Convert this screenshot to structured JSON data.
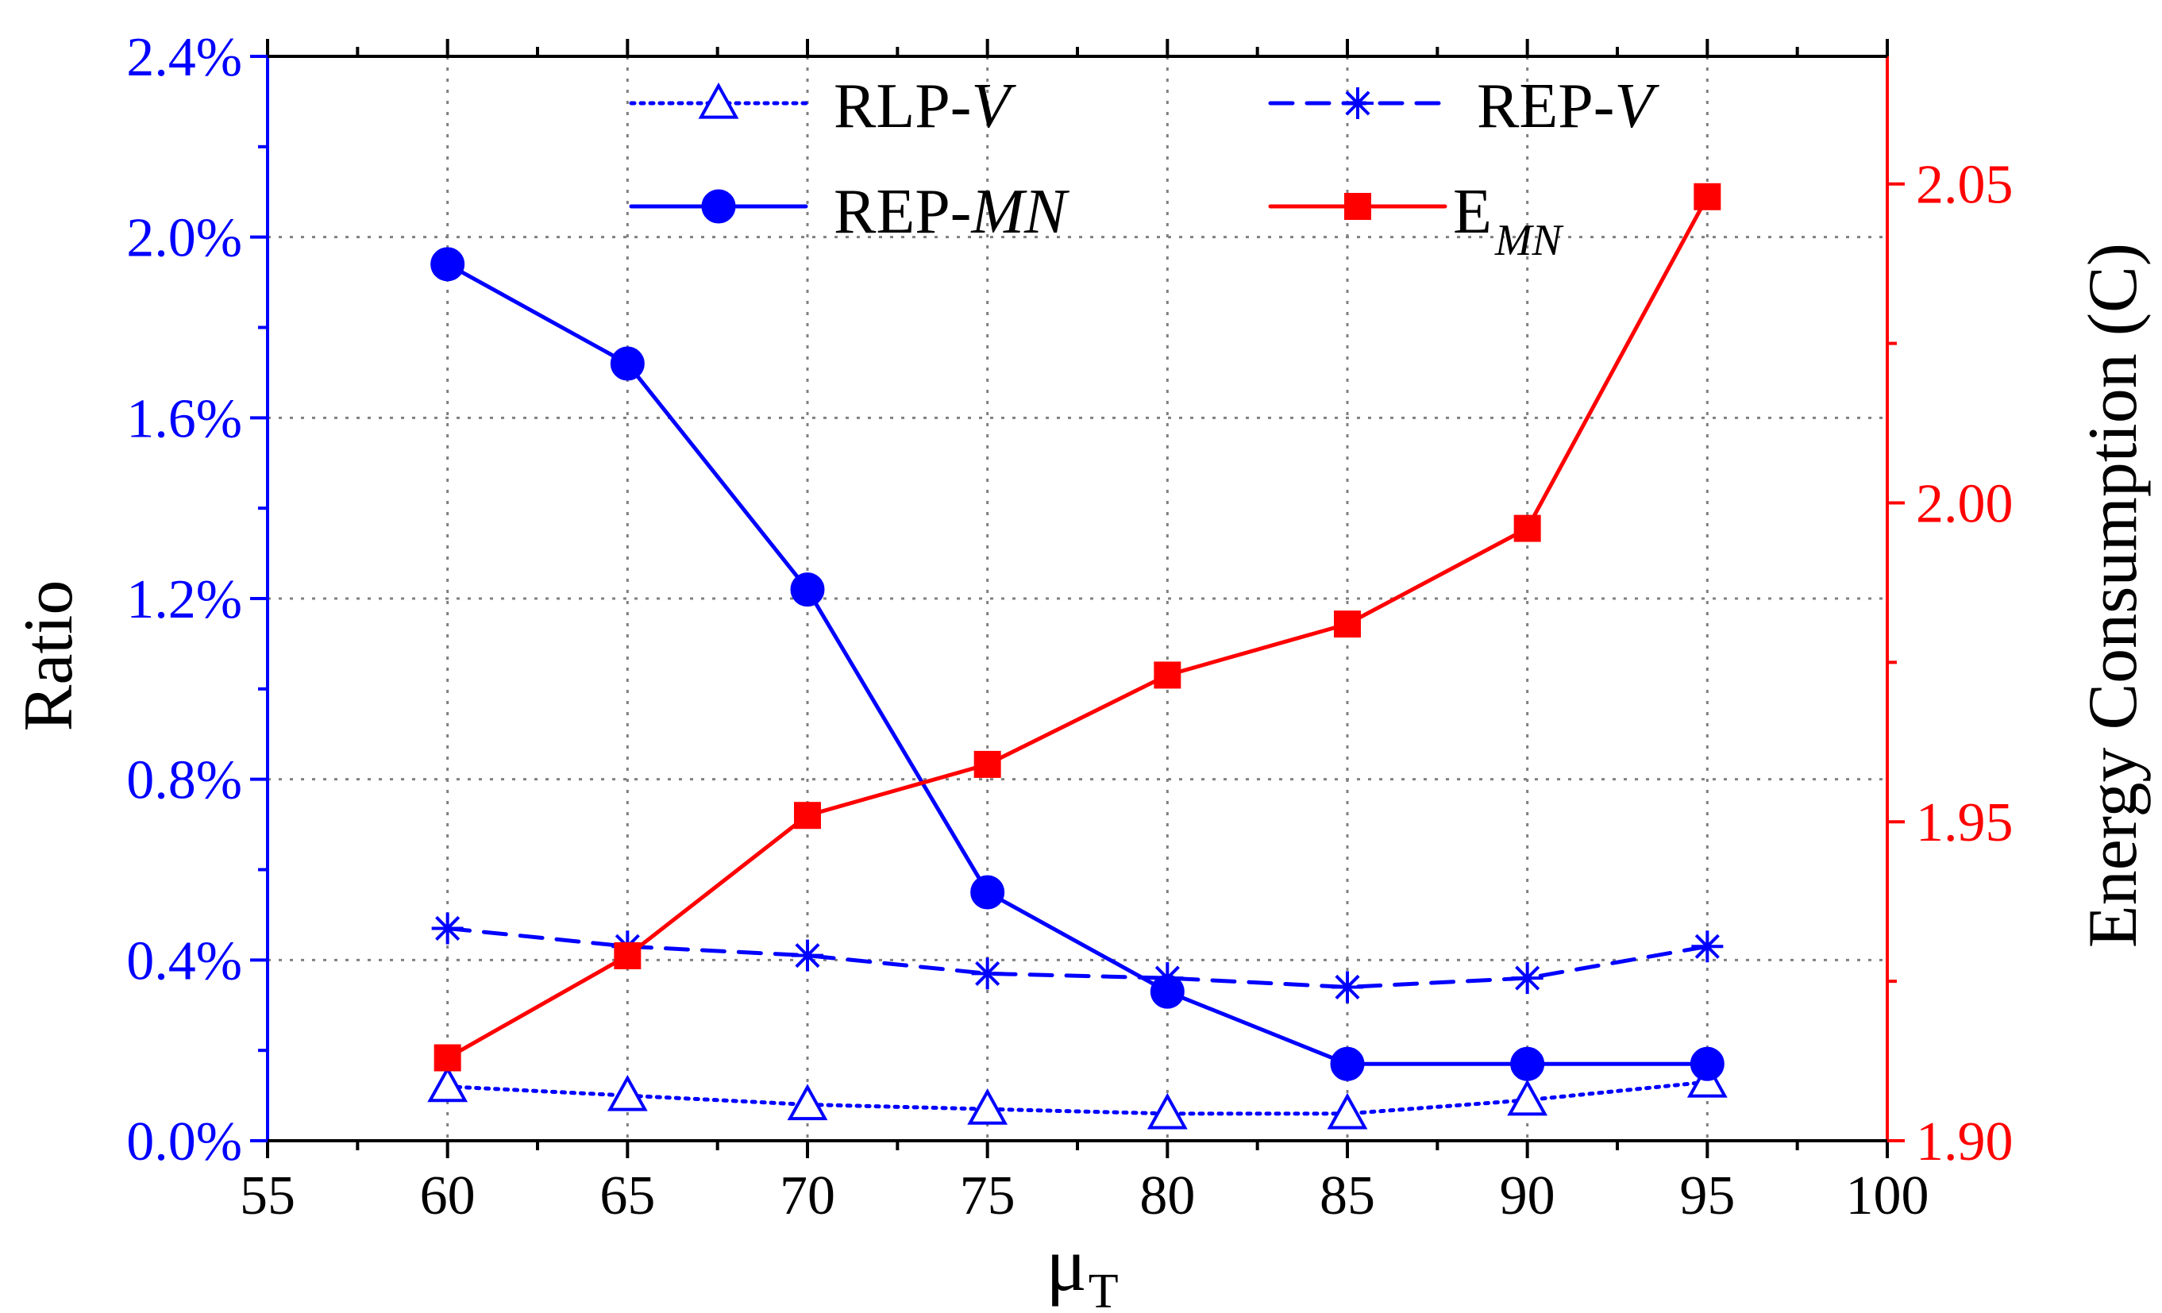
{
  "colors": {
    "left_axis": "#0000ff",
    "right_axis": "#ff0000",
    "axis": "#000000",
    "grid": "#808080"
  },
  "chart_data": {
    "type": "line",
    "title": "",
    "xlabel": "μ",
    "xlabel_sub": "T",
    "ylabel_left": "Ratio",
    "ylabel_right": "Energy Consumption (C)",
    "xlim": [
      55,
      100
    ],
    "ylim_left": [
      0,
      2.4
    ],
    "ylim_right": [
      1.9,
      2.07
    ],
    "x_ticks": [
      "55",
      "60",
      "65",
      "70",
      "75",
      "80",
      "85",
      "90",
      "95",
      "100"
    ],
    "y_left_ticks": [
      "0.0%",
      "0.4%",
      "0.8%",
      "1.2%",
      "1.6%",
      "2.0%",
      "2.4%"
    ],
    "y_right_ticks": [
      "1.90",
      "1.95",
      "2.00",
      "2.05"
    ],
    "grid": true,
    "legend_position": "top",
    "x": [
      60,
      65,
      70,
      75,
      80,
      85,
      90,
      95
    ],
    "series": [
      {
        "name": "RLP-",
        "name_italic": "V",
        "axis": "left",
        "unit": "%",
        "color": "#0000ff",
        "line_style": "dotted",
        "marker": "open-triangle",
        "values": [
          0.12,
          0.1,
          0.08,
          0.07,
          0.06,
          0.06,
          0.09,
          0.13
        ]
      },
      {
        "name": "REP-",
        "name_italic": "V",
        "axis": "left",
        "unit": "%",
        "color": "#0000ff",
        "line_style": "dashed",
        "marker": "asterisk",
        "values": [
          0.47,
          0.43,
          0.41,
          0.37,
          0.36,
          0.34,
          0.36,
          0.43
        ]
      },
      {
        "name": "REP-",
        "name_italic": "MN",
        "axis": "left",
        "unit": "%",
        "color": "#0000ff",
        "line_style": "solid",
        "marker": "filled-circle",
        "values": [
          1.94,
          1.72,
          1.22,
          0.55,
          0.33,
          0.17,
          0.17,
          0.17
        ]
      },
      {
        "name": "E",
        "name_sub": "MN",
        "axis": "right",
        "unit": "C",
        "color": "#ff0000",
        "line_style": "solid",
        "marker": "filled-square",
        "values": [
          1.913,
          1.929,
          1.951,
          1.959,
          1.973,
          1.981,
          1.996,
          2.048
        ]
      }
    ]
  }
}
